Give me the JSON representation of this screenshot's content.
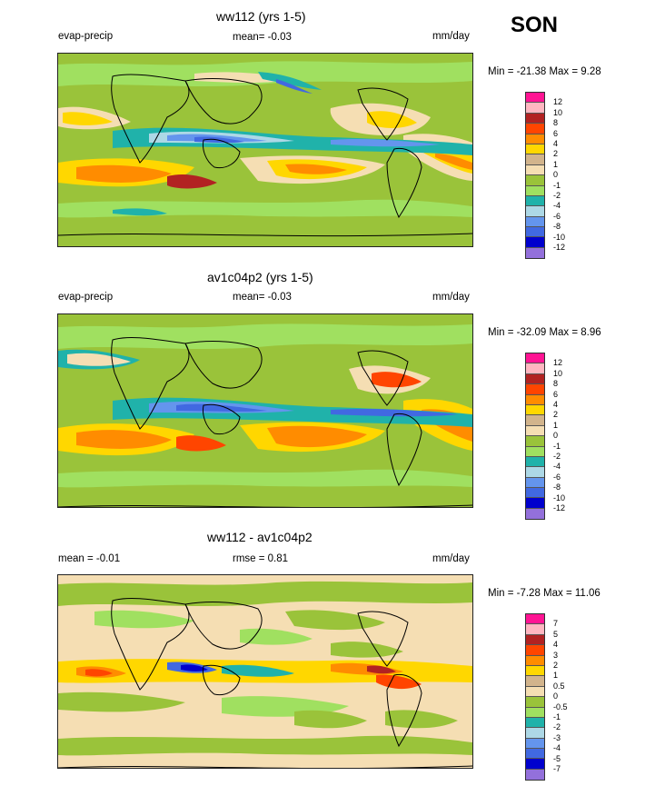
{
  "season": "SON",
  "colors": {
    "map_levels_14": [
      "#ff1493",
      "#ffb6c1",
      "#b22222",
      "#ff4500",
      "#ff8c00",
      "#ffd700",
      "#d2b48c",
      "#f5deb3",
      "#9ac33a",
      "#a0e060",
      "#20b2aa",
      "#add8e6",
      "#6495ed",
      "#4169e1",
      "#0000cd",
      "#9370db"
    ],
    "coast": "#000000"
  },
  "panels": [
    {
      "title": "ww112 (yrs 1-5)",
      "left_label": "evap-precip",
      "mid_label": "mean=  -0.03",
      "units": "mm/day",
      "minmax": "Min = -21.38 Max =   9.28",
      "legend_labels": [
        "12",
        "10",
        "8",
        "6",
        "4",
        "2",
        "1",
        "0",
        "-1",
        "-2",
        "-4",
        "-6",
        "-8",
        "-10",
        "-12"
      ],
      "legend_colors": [
        "#ff1493",
        "#ffb6c1",
        "#b22222",
        "#ff4500",
        "#ff8c00",
        "#ffd700",
        "#d2b48c",
        "#f5deb3",
        "#9ac33a",
        "#a0e060",
        "#20b2aa",
        "#add8e6",
        "#6495ed",
        "#4169e1",
        "#0000cd",
        "#9370db"
      ]
    },
    {
      "title": "av1c04p2 (yrs 1-5)",
      "left_label": "evap-precip",
      "mid_label": "mean=  -0.03",
      "units": "mm/day",
      "minmax": "Min = -32.09 Max =   8.96",
      "legend_labels": [
        "12",
        "10",
        "8",
        "6",
        "4",
        "2",
        "1",
        "0",
        "-1",
        "-2",
        "-4",
        "-6",
        "-8",
        "-10",
        "-12"
      ],
      "legend_colors": [
        "#ff1493",
        "#ffb6c1",
        "#b22222",
        "#ff4500",
        "#ff8c00",
        "#ffd700",
        "#d2b48c",
        "#f5deb3",
        "#9ac33a",
        "#a0e060",
        "#20b2aa",
        "#add8e6",
        "#6495ed",
        "#4169e1",
        "#0000cd",
        "#9370db"
      ]
    },
    {
      "title": "ww112 - av1c04p2",
      "left_label": "mean =  -0.01",
      "mid_label": "rmse =   0.81",
      "units": "mm/day",
      "minmax": "Min =  -7.28 Max =  11.06",
      "legend_labels": [
        "7",
        "5",
        "4",
        "3",
        "2",
        "1",
        "0.5",
        "0",
        "-0.5",
        "-1",
        "-2",
        "-3",
        "-4",
        "-5",
        "-7"
      ],
      "legend_colors": [
        "#ff1493",
        "#ffb6c1",
        "#b22222",
        "#ff4500",
        "#ff8c00",
        "#ffd700",
        "#d2b48c",
        "#f5deb3",
        "#9ac33a",
        "#a0e060",
        "#20b2aa",
        "#add8e6",
        "#6495ed",
        "#4169e1",
        "#0000cd",
        "#9370db"
      ]
    }
  ]
}
